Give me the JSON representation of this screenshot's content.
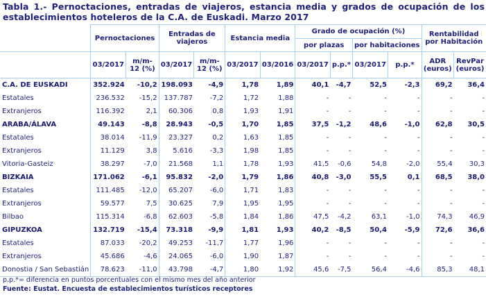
{
  "title": {
    "line1": "Tabla 1.- Pernoctaciones, entradas de viajeros, estancia media y grados de ocupación de los",
    "line2": "establecimientos hoteleros de la C.A. de Euskadi. Marzo 2017"
  },
  "headers": {
    "pernoctaciones": "Pernoctaciones",
    "entradas": "Entradas de viajeros",
    "estancia": "Estancia media",
    "grado": "Grado de ocupación (%)",
    "por_plazas": "por plazas",
    "por_habitaciones": "por habitaciones",
    "rentabilidad": "Rentabilidad por Habitación",
    "sub": {
      "pern_date": "03/2017",
      "pern_var": "m/m-12 (%)",
      "ent_date": "03/2017",
      "ent_var": "m/m-12 (%)",
      "est_2017": "03/2017",
      "est_2016": "03/2016",
      "plazas_date": "03/2017",
      "plazas_pp": "p.p.*",
      "hab_date": "03/2017",
      "hab_pp": "p.p.*",
      "adr": "ADR (euros)",
      "revpar": "RevPar (euros)"
    }
  },
  "rows": [
    {
      "label": "C.A. DE EUSKADI",
      "bold": true,
      "v": [
        "352.924",
        "-10,2",
        "198.093",
        "-4,9",
        "1,78",
        "1,89",
        "40,1",
        "-4,7",
        "52,5",
        "-2,3",
        "69,2",
        "36,4"
      ]
    },
    {
      "label": "Estatales",
      "bold": false,
      "v": [
        "236.532",
        "-15,2",
        "137.787",
        "-7,2",
        "1,72",
        "1,88",
        "-",
        "-",
        "-",
        "-",
        "-",
        "-"
      ]
    },
    {
      "label": "Extranjeros",
      "bold": false,
      "v": [
        "116.392",
        "2,1",
        "60.306",
        "0,8",
        "1,93",
        "1,91",
        "-",
        "-",
        "-",
        "-",
        "-",
        "-"
      ]
    },
    {
      "label": "ARABA/ÁLAVA",
      "bold": true,
      "v": [
        "49.143",
        "-8,8",
        "28.943",
        "-0,5",
        "1,70",
        "1,85",
        "37,5",
        "-1,2",
        "48,6",
        "-1,0",
        "62,8",
        "30,5"
      ]
    },
    {
      "label": "Estatales",
      "bold": false,
      "v": [
        "38.014",
        "-11,9",
        "23.327",
        "0,2",
        "1,63",
        "1,85",
        "-",
        "-",
        "-",
        "-",
        "-",
        "-"
      ]
    },
    {
      "label": "Extranjeros",
      "bold": false,
      "v": [
        "11.129",
        "3,8",
        "5.616",
        "-3,3",
        "1,98",
        "1,85",
        "-",
        "-",
        "-",
        "-",
        "-",
        "-"
      ]
    },
    {
      "label": "Vitoria-Gasteiz",
      "bold": false,
      "v": [
        "38.297",
        "-7,0",
        "21.568",
        "1,1",
        "1,78",
        "1,93",
        "41,5",
        "-0,6",
        "54,8",
        "-2,0",
        "55,4",
        "30,3"
      ]
    },
    {
      "label": "BIZKAIA",
      "bold": true,
      "v": [
        "171.062",
        "-6,1",
        "95.832",
        "-2,0",
        "1,79",
        "1,86",
        "40,8",
        "-3,0",
        "55,5",
        "0,1",
        "68,5",
        "38,0"
      ]
    },
    {
      "label": "Estatales",
      "bold": false,
      "v": [
        "111.485",
        "-12,0",
        "65.207",
        "-6,0",
        "1,71",
        "1,83",
        "-",
        "-",
        "-",
        "-",
        "-",
        "-"
      ]
    },
    {
      "label": "Extranjeros",
      "bold": false,
      "v": [
        "59.577",
        "7,5",
        "30.625",
        "7,9",
        "1,95",
        "1,95",
        "-",
        "-",
        "-",
        "-",
        "-",
        "-"
      ]
    },
    {
      "label": "Bilbao",
      "bold": false,
      "v": [
        "115.314",
        "-6,8",
        "62.603",
        "-5,8",
        "1,84",
        "1,86",
        "47,5",
        "-4,2",
        "63,1",
        "-1,0",
        "74,3",
        "46,9"
      ]
    },
    {
      "label": "GIPUZKOA",
      "bold": true,
      "v": [
        "132.719",
        "-15,4",
        "73.318",
        "-9,9",
        "1,81",
        "1,93",
        "40,2",
        "-8,5",
        "50,4",
        "-5,9",
        "72,6",
        "36,6"
      ]
    },
    {
      "label": "Estatales",
      "bold": false,
      "v": [
        "87.033",
        "-20,2",
        "49.253",
        "-11,7",
        "1,77",
        "1,96",
        "-",
        "-",
        "-",
        "-",
        "-",
        "-"
      ]
    },
    {
      "label": "Extranjeros",
      "bold": false,
      "v": [
        "45.686",
        "-4,6",
        "24.065",
        "-6,0",
        "1,90",
        "1,87",
        "-",
        "-",
        "-",
        "-",
        "-",
        "-"
      ]
    },
    {
      "label": "Donostia / San Sebastián",
      "bold": false,
      "v": [
        "78.623",
        "-11,0",
        "43.798",
        "-4,7",
        "1,80",
        "1,92",
        "45,6",
        "-7,5",
        "56,4",
        "-4,6",
        "85,3",
        "48,1"
      ]
    }
  ],
  "footnote": "p.p.*= diferencia en puntos porcentuales con el mismo mes del año anterior",
  "source": "Fuente: Eustat. Encuesta de establecimientos turísticos receptores",
  "colors": {
    "text": "#1f1f7a",
    "grid": "#a8cdf0"
  }
}
